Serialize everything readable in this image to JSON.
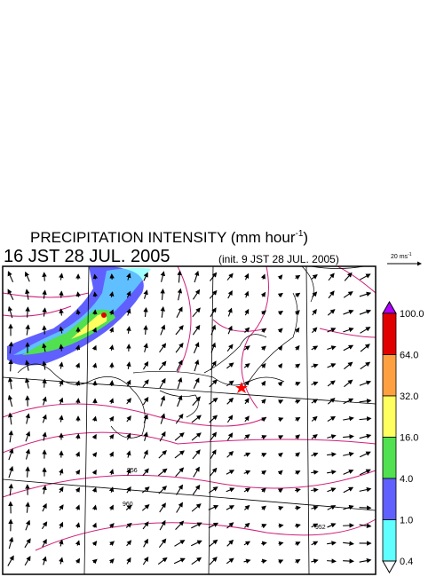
{
  "header": {
    "title": "PRECIPITATION INTENSITY (mm hour",
    "title_superscript": "-1",
    "title_close": ")",
    "time": "16 JST 28 JUL. 2005",
    "init": "(init. 9 JST 28 JUL. 2005)"
  },
  "wind_scale": {
    "label": "20 ms",
    "superscript": "-1"
  },
  "colorbar": {
    "labels": [
      "100.0",
      "64.0",
      "32.0",
      "16.0",
      "4.0",
      "1.0",
      "0.4"
    ],
    "colors": [
      "#b000ff",
      "#e00000",
      "#ffa040",
      "#ffff60",
      "#50e050",
      "#6060ff",
      "#60ffff",
      "#ffffff"
    ]
  },
  "contour_labels": [
    "956",
    "960",
    "952"
  ]
}
